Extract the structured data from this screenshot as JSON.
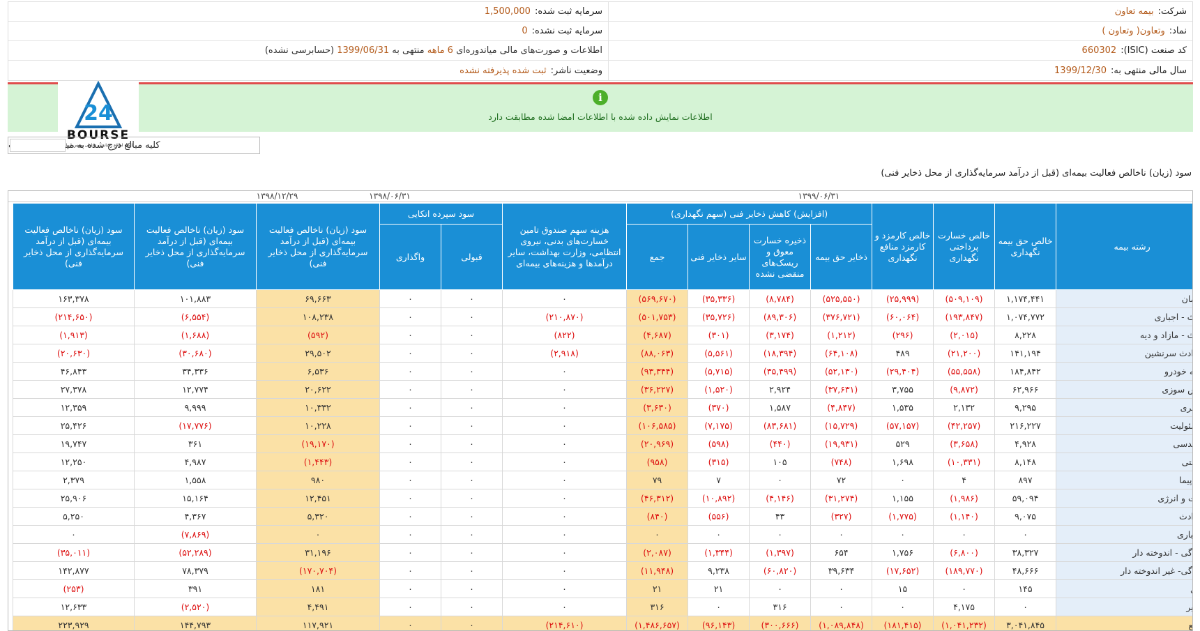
{
  "header": {
    "company_label": "شرکت:",
    "company_value": "بیمه تعاون",
    "symbol_label": "نماد:",
    "symbol_value": "وتعاون( وتعاون )",
    "isic_label": "کد صنعت (ISIC):",
    "isic_value": "660302",
    "fiscal_label": "سال مالی منتهی به:",
    "fiscal_value": "1399/12/30",
    "capital_reg_label": "سرمایه ثبت شده:",
    "capital_reg_value": "1,500,000",
    "capital_unreg_label": "سرمایه ثبت نشده:",
    "capital_unreg_value": "0",
    "report_pre": "اطلاعات و صورت‌های مالی میاندوره‌ای",
    "report_period": "6 ماهه",
    "report_mid": "منتهی به",
    "report_date": "1399/06/31",
    "report_post": "(حسابرسی نشده)",
    "status_label": "وضعیت ناشر:",
    "status_value": "ثبت شده پذیرفته نشده"
  },
  "banner": {
    "icon": "info-icon",
    "message": "اطلاعات نمایش داده شده با اطلاعات امضا شده مطابقت دارد"
  },
  "logo": {
    "word": "BOURSE",
    "mark": "24",
    "subtitle": "پایگاه اطلاع رسانی و تحلیلی بورس ایران"
  },
  "units_note": "کلیه مبالغ درج شده به میلیون ریال است",
  "table": {
    "title": "سود (زیان) ناخالص فعالیت بیمه‌ای (قبل از درآمد سرمایه‌گذاری از محل ذخایر فنی)",
    "dates": [
      "۱۳۹۹/۰۶/۳۱",
      "۱۳۹۸/۰۶/۳۱",
      "۱۳۹۸/۱۲/۲۹"
    ],
    "headers": {
      "branch": "رشته بیمه",
      "net_premium": "خالص حق بیمه نگهداری",
      "net_loss": "خالص خسارت پرداختی نگهداری",
      "net_commission": "خالص کارمزد و کارمزد منافع نگهداری",
      "group_reserve": "(افزایش) کاهش ذخایر فنی (سهم نگهداری)",
      "premium_reserve": "ذخایر حق بیمه",
      "deferred_reserve": "ذخیره خسارت معوق و ریسک‌های منقضی نشده",
      "other_reserve": "سایر ذخایر فنی",
      "sum": "جمع",
      "fund_cost": "هزینه سهم صندوق تامین خسارت‌های بدنی، نیروی انتظامی، وزارت بهداشت، سایر درآمدها و هزینه‌های بیمه‌ای",
      "group_reins": "سود سپرده اتکایی",
      "accepted": "قبولی",
      "ceded": "واگذاری",
      "profit_1399": "سود (زیان) ناخالص فعالیت بیمه‌ای (قبل از درآمد سرمایه‌گذاری از محل ذخایر فنی)",
      "profit_1398h": "سود (زیان) ناخالص فعالیت بیمه‌ای (قبل از درآمد سرمایه‌گذاری از محل ذخایر فنی)",
      "profit_1398": "سود (زیان) ناخالص فعالیت بیمه‌ای (قبل از درآمد سرمایه‌گذاری از محل ذخایر فنی)"
    },
    "rows": [
      [
        "درمان",
        "۱,۱۷۴,۴۴۱",
        "(۵۰۹,۱۰۹)",
        "(۲۵,۹۹۹)",
        "(۵۲۵,۵۵۰)",
        "(۸,۷۸۴)",
        "(۳۵,۳۳۶)",
        "(۵۶۹,۶۷۰)",
        "۰",
        "۰",
        "۰",
        "۶۹,۶۶۳",
        "۱۰۱,۸۸۳",
        "۱۶۳,۳۷۸"
      ],
      [
        "ثالث - اجباری",
        "۱,۰۷۴,۷۷۲",
        "(۱۹۳,۸۴۷)",
        "(۶۰,۰۶۴)",
        "(۳۷۶,۷۲۱)",
        "(۸۹,۳۰۶)",
        "(۳۵,۷۲۶)",
        "(۵۰۱,۷۵۳)",
        "(۲۱۰,۸۷۰)",
        "۰",
        "۰",
        "۱۰۸,۲۳۸",
        "(۶,۵۵۴)",
        "(۲۱۴,۶۵۰)"
      ],
      [
        "ثالث - مازاد و دیه",
        "۸,۲۲۸",
        "(۲,۰۱۵)",
        "(۲۹۶)",
        "(۱,۲۱۲)",
        "(۳,۱۷۴)",
        "(۳۰۱)",
        "(۴,۶۸۷)",
        "(۸۲۲)",
        "۰",
        "۰",
        "(۵۹۲)",
        "(۱,۶۸۸)",
        "(۱,۹۱۳)"
      ],
      [
        "حوادث سرنشین",
        "۱۴۱,۱۹۴",
        "(۲۱,۲۰۰)",
        "۴۸۹",
        "(۶۴,۱۰۸)",
        "(۱۸,۳۹۴)",
        "(۵,۵۶۱)",
        "(۸۸,۰۶۳)",
        "(۲,۹۱۸)",
        "۰",
        "۰",
        "۲۹,۵۰۲",
        "(۳۰,۶۸۰)",
        "(۲۰,۶۳۰)"
      ],
      [
        "بدنه خودرو",
        "۱۸۴,۸۴۲",
        "(۵۵,۵۵۸)",
        "(۲۹,۴۰۴)",
        "(۵۲,۱۳۰)",
        "(۳۵,۴۹۹)",
        "(۵,۷۱۵)",
        "(۹۳,۳۴۴)",
        "۰",
        "۰",
        "۰",
        "۶,۵۳۶",
        "۳۴,۳۳۶",
        "۴۶,۸۴۳"
      ],
      [
        "آتش سوزی",
        "۶۲,۹۶۶",
        "(۹,۸۷۲)",
        "۳,۷۵۵",
        "(۳۷,۶۳۱)",
        "۲,۹۲۴",
        "(۱,۵۲۰)",
        "(۳۶,۲۲۷)",
        "۰",
        "۰",
        "۰",
        "۲۰,۶۲۲",
        "۱۲,۷۷۴",
        "۲۷,۳۷۸"
      ],
      [
        "باربری",
        "۹,۲۹۵",
        "۲,۱۳۲",
        "۱,۵۳۵",
        "(۴,۸۴۷)",
        "۱,۵۸۷",
        "(۳۷۰)",
        "(۳,۶۳۰)",
        "۰",
        "۰",
        "۰",
        "۱۰,۳۳۲",
        "۹,۹۹۹",
        "۱۲,۳۵۹"
      ],
      [
        "مسئولیت",
        "۲۱۶,۲۲۷",
        "(۴۲,۲۵۷)",
        "(۵۷,۱۵۷)",
        "(۱۵,۷۲۹)",
        "(۸۳,۶۸۱)",
        "(۷,۱۷۵)",
        "(۱۰۶,۵۸۵)",
        "۰",
        "۰",
        "۰",
        "۱۰,۲۲۸",
        "(۱۷,۷۷۶)",
        "۲۵,۴۲۶"
      ],
      [
        "مهندسی",
        "۴,۹۲۸",
        "(۳,۶۵۸)",
        "۵۲۹",
        "(۱۹,۹۳۱)",
        "(۴۴۰)",
        "(۵۹۸)",
        "(۲۰,۹۶۹)",
        "۰",
        "۰",
        "۰",
        "(۱۹,۱۷۰)",
        "۳۶۱",
        "۱۹,۷۴۷"
      ],
      [
        "کشتی",
        "۸,۱۴۸",
        "(۱۰,۳۳۱)",
        "۱,۶۹۸",
        "(۷۴۸)",
        "۱۰۵",
        "(۳۱۵)",
        "(۹۵۸)",
        "۰",
        "۰",
        "۰",
        "(۱,۴۴۳)",
        "۴,۹۸۷",
        "۱۲,۲۵۰"
      ],
      [
        "هواپیما",
        "۸۹۷",
        "۴",
        "۰",
        "۷۲",
        "۰",
        "۷",
        "۷۹",
        "۰",
        "۰",
        "۰",
        "۹۸۰",
        "۱,۵۵۸",
        "۲,۳۷۹"
      ],
      [
        "نفت و انرژی",
        "۵۹,۰۹۴",
        "(۱,۹۸۶)",
        "۱,۱۵۵",
        "(۳۱,۲۷۴)",
        "(۴,۱۴۶)",
        "(۱۰,۸۹۲)",
        "(۴۶,۳۱۲)",
        "۰",
        "۰",
        "۰",
        "۱۲,۴۵۱",
        "۱۵,۱۶۴",
        "۲۵,۹۰۶"
      ],
      [
        "حوادث",
        "۹,۰۷۵",
        "(۱,۱۴۰)",
        "(۱,۷۷۵)",
        "(۳۲۷)",
        "۴۳",
        "(۵۵۶)",
        "(۸۴۰)",
        "۰",
        "۰",
        "۰",
        "۵,۳۲۰",
        "۴,۳۶۷",
        "۵,۲۵۰"
      ],
      [
        "اعتباری",
        "۰",
        "۰",
        "۰",
        "۰",
        "۰",
        "۰",
        "۰",
        "۰",
        "۰",
        "۰",
        "۰",
        "(۷,۸۶۹)",
        "۰"
      ],
      [
        "زندگی - اندوخته دار",
        "۳۸,۳۲۷",
        "(۶,۸۰۰)",
        "۱,۷۵۶",
        "۶۵۴",
        "(۱,۳۹۷)",
        "(۱,۳۴۴)",
        "(۲,۰۸۷)",
        "۰",
        "۰",
        "۰",
        "۳۱,۱۹۶",
        "(۵۲,۲۸۹)",
        "(۳۵,۰۱۱)"
      ],
      [
        "زندگی- غیر اندوخته دار",
        "۴۸,۶۶۶",
        "(۱۸۹,۷۷۰)",
        "(۱۷,۶۵۲)",
        "۳۹,۶۳۴",
        "(۶۰,۸۲۰)",
        "۹,۲۳۸",
        "(۱۱,۹۴۸)",
        "۰",
        "۰",
        "۰",
        "(۱۷۰,۷۰۴)",
        "۷۸,۳۷۹",
        "۱۴۲,۸۷۷"
      ],
      [
        "پول",
        "۱۴۵",
        "۰",
        "۱۵",
        "۰",
        "۰",
        "۲۱",
        "۲۱",
        "۰",
        "۰",
        "۰",
        "۱۸۱",
        "۳۹۱",
        "(۲۵۳)"
      ],
      [
        "سایر",
        "۰",
        "۴,۱۷۵",
        "۰",
        "۰",
        "۳۱۶",
        "۰",
        "۳۱۶",
        "۰",
        "۰",
        "۰",
        "۴,۴۹۱",
        "(۲,۵۲۰)",
        "۱۲,۶۳۳"
      ],
      [
        "جمع",
        "۳,۰۴۱,۸۴۵",
        "(۱,۰۴۱,۲۳۲)",
        "(۱۸۱,۴۱۵)",
        "(۱,۰۸۹,۸۴۸)",
        "(۳۰۰,۶۶۶)",
        "(۹۶,۱۴۳)",
        "(۱,۴۸۶,۶۵۷)",
        "(۲۱۴,۶۱۰)",
        "۰",
        "۰",
        "۱۱۷,۹۲۱",
        "۱۴۴,۷۹۳",
        "۲۲۳,۹۲۹"
      ]
    ]
  },
  "colors": {
    "header_blue": "#1a8fd6",
    "highlight": "#fbe1a6",
    "negative": "#d11111",
    "banner": "#d5f3d5",
    "accent_orange": "#b35a1a"
  }
}
